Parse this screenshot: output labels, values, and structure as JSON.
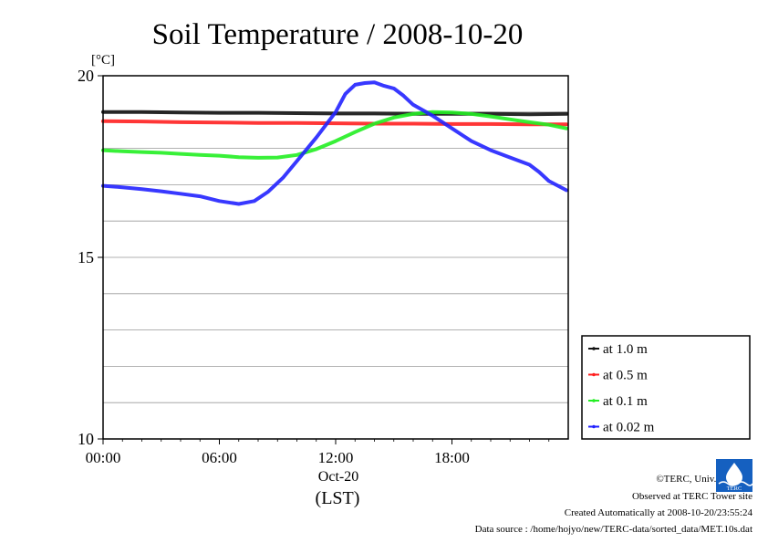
{
  "chart_data": {
    "type": "line",
    "title": "Soil Temperature / 2008-10-20",
    "unit_label": "[°C]",
    "ylim": [
      10,
      20
    ],
    "y_ticks": [
      "10",
      "15",
      "20"
    ],
    "y_minor_step": 1,
    "xlim_hours": [
      0,
      23.9
    ],
    "x_ticks": [
      "00:00",
      "06:00",
      "12:00",
      "18:00"
    ],
    "x_date_label": "Oct-20",
    "x_axis_label": "(LST)",
    "grid": true,
    "legend_position": "right",
    "series": [
      {
        "name": "at 1.0 m",
        "color": "#111111",
        "points": [
          [
            0,
            19.0
          ],
          [
            2,
            19.0
          ],
          [
            4,
            18.99
          ],
          [
            6,
            18.98
          ],
          [
            8,
            18.98
          ],
          [
            10,
            18.97
          ],
          [
            12,
            18.96
          ],
          [
            14,
            18.96
          ],
          [
            16,
            18.95
          ],
          [
            18,
            18.95
          ],
          [
            20,
            18.95
          ],
          [
            22,
            18.94
          ],
          [
            23.9,
            18.95
          ]
        ]
      },
      {
        "name": "at 0.5 m",
        "color": "#ff2020",
        "points": [
          [
            0,
            18.75
          ],
          [
            2,
            18.74
          ],
          [
            4,
            18.72
          ],
          [
            6,
            18.71
          ],
          [
            8,
            18.7
          ],
          [
            10,
            18.7
          ],
          [
            12,
            18.69
          ],
          [
            14,
            18.68
          ],
          [
            16,
            18.68
          ],
          [
            18,
            18.67
          ],
          [
            20,
            18.67
          ],
          [
            22,
            18.66
          ],
          [
            23.9,
            18.66
          ]
        ]
      },
      {
        "name": "at 0.1 m",
        "color": "#22ee22",
        "points": [
          [
            0,
            17.95
          ],
          [
            1,
            17.92
          ],
          [
            2,
            17.9
          ],
          [
            3,
            17.88
          ],
          [
            4,
            17.85
          ],
          [
            5,
            17.82
          ],
          [
            6,
            17.8
          ],
          [
            7,
            17.76
          ],
          [
            8,
            17.74
          ],
          [
            9,
            17.75
          ],
          [
            10,
            17.82
          ],
          [
            11,
            17.98
          ],
          [
            12,
            18.2
          ],
          [
            13,
            18.45
          ],
          [
            14,
            18.68
          ],
          [
            15,
            18.85
          ],
          [
            16,
            18.95
          ],
          [
            17,
            19.0
          ],
          [
            18,
            18.99
          ],
          [
            19,
            18.95
          ],
          [
            20,
            18.88
          ],
          [
            21,
            18.8
          ],
          [
            22,
            18.72
          ],
          [
            23,
            18.65
          ],
          [
            23.9,
            18.55
          ]
        ]
      },
      {
        "name": "at 0.02 m",
        "color": "#2222ff",
        "points": [
          [
            0,
            16.97
          ],
          [
            1,
            16.93
          ],
          [
            2,
            16.88
          ],
          [
            3,
            16.82
          ],
          [
            4,
            16.75
          ],
          [
            5,
            16.68
          ],
          [
            6,
            16.55
          ],
          [
            7,
            16.47
          ],
          [
            7.8,
            16.55
          ],
          [
            8.5,
            16.8
          ],
          [
            9.3,
            17.2
          ],
          [
            10,
            17.65
          ],
          [
            11,
            18.3
          ],
          [
            12,
            19.0
          ],
          [
            12.5,
            19.5
          ],
          [
            13,
            19.75
          ],
          [
            13.5,
            19.8
          ],
          [
            14,
            19.82
          ],
          [
            14.5,
            19.72
          ],
          [
            15,
            19.65
          ],
          [
            15.5,
            19.45
          ],
          [
            16,
            19.2
          ],
          [
            17,
            18.9
          ],
          [
            18,
            18.55
          ],
          [
            19,
            18.2
          ],
          [
            20,
            17.95
          ],
          [
            21,
            17.75
          ],
          [
            22,
            17.55
          ],
          [
            22.5,
            17.35
          ],
          [
            23,
            17.1
          ],
          [
            23.9,
            16.85
          ]
        ]
      }
    ]
  },
  "footer": {
    "copyright": "©TERC, Univ. Tsukuba",
    "observed": "Observed at TERC Tower site",
    "created": "Created Automatically at 2008-10-20/23:55:24",
    "source": "Data source : /home/hojyo/new/TERC-data/sorted_data/MET.10s.dat",
    "logo_text": "TERC",
    "logo_color": "#1560c0"
  }
}
